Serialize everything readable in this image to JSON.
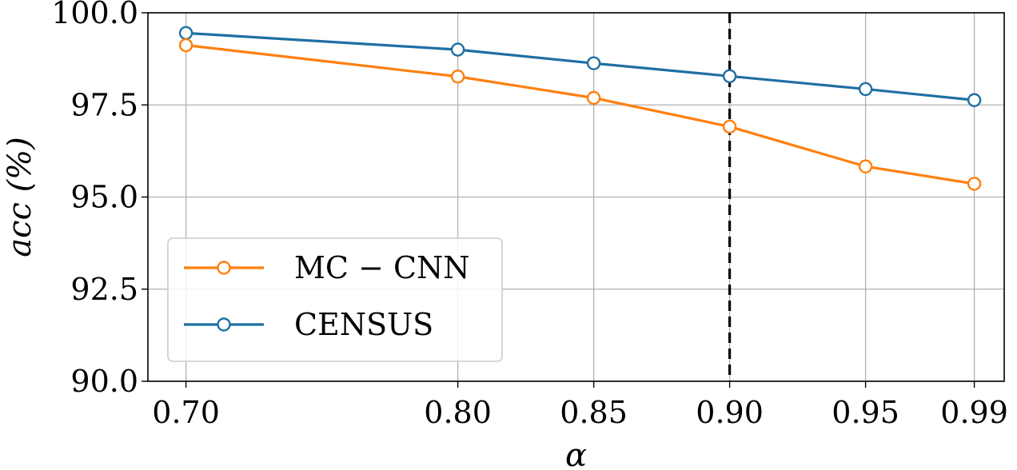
{
  "chart_data": {
    "type": "line",
    "xlabel": "α",
    "ylabel": "acc (%)",
    "x": [
      0.7,
      0.8,
      0.85,
      0.9,
      0.95,
      0.99
    ],
    "x_tick_labels": [
      "0.70",
      "0.80",
      "0.85",
      "0.90",
      "0.95",
      "0.99"
    ],
    "xlim": [
      0.686,
      1.001
    ],
    "ylim": [
      90.0,
      100.0
    ],
    "y_ticks": [
      90.0,
      92.5,
      95.0,
      97.5,
      100.0
    ],
    "y_tick_labels": [
      "90.0",
      "92.5",
      "95.0",
      "97.5",
      "100.0"
    ],
    "grid": true,
    "legend_position": "lower-left",
    "vertical_reference_line": {
      "x": 0.9,
      "style": "dashed",
      "color": "#000000"
    },
    "series": [
      {
        "name": "MC − CNN",
        "color": "#ff7f0e",
        "values": [
          99.12,
          98.27,
          97.69,
          96.91,
          95.83,
          95.36
        ]
      },
      {
        "name": "CENSUS",
        "color": "#1f6fa3",
        "values": [
          99.45,
          99.0,
          98.63,
          98.28,
          97.93,
          97.63
        ]
      }
    ]
  }
}
